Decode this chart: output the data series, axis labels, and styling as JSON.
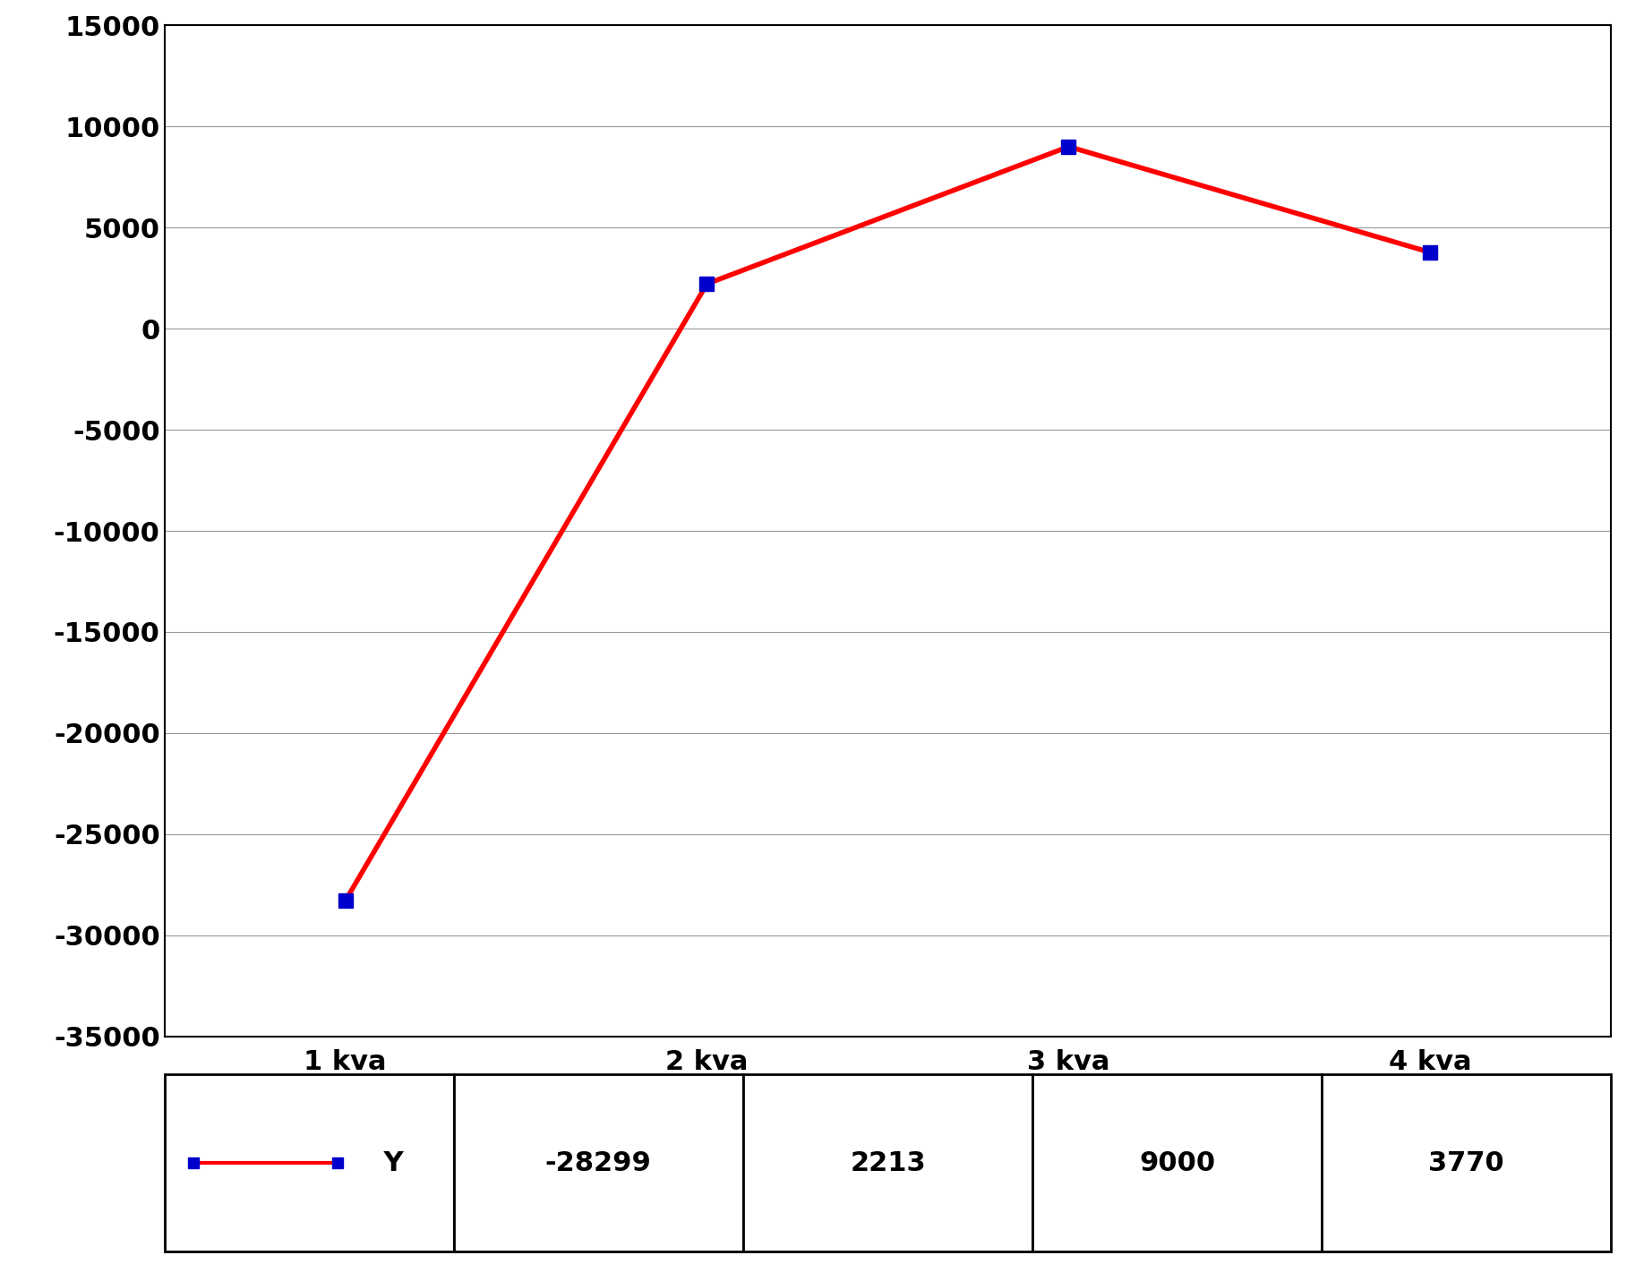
{
  "x_labels": [
    "1 kva",
    "2 kva",
    "3 kva",
    "4 kva"
  ],
  "y_values": [
    -28299,
    2213,
    9000,
    3770
  ],
  "line_color": "#FF0000",
  "marker_color": "#0000CC",
  "marker_style": "s",
  "marker_size": 12,
  "line_width": 4,
  "ylim": [
    -35000,
    15000
  ],
  "yticks": [
    -35000,
    -30000,
    -25000,
    -20000,
    -15000,
    -10000,
    -5000,
    0,
    5000,
    10000,
    15000
  ],
  "background_color": "#FFFFFF",
  "grid_color": "#999999",
  "legend_label": "Y",
  "legend_values": [
    "-28299",
    "2213",
    "9000",
    "3770"
  ],
  "table_border_color": "#000000",
  "axis_label_fontsize": 22,
  "tick_fontsize": 22,
  "legend_fontsize": 22,
  "table_fontsize": 22
}
